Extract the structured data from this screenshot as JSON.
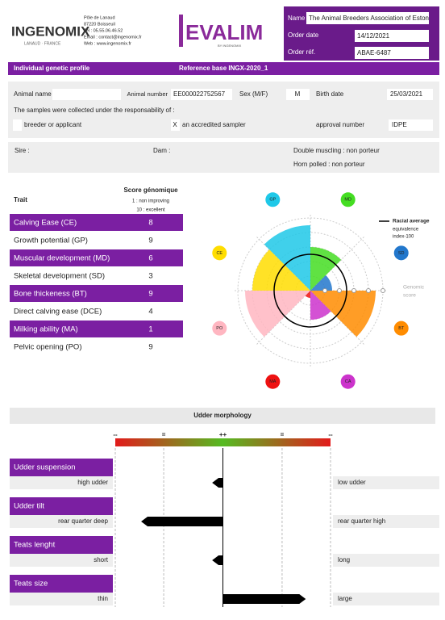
{
  "header": {
    "brand": "INGENOMIX",
    "brand_sub": "LANAUD · FRANCE",
    "address": [
      "Pôle de Lanaud",
      "87220 Boisseuil",
      "Tel : 05.55.06.46.52",
      "Email : contact@ingenomix.fr",
      "Web : www.ingenomix.fr"
    ],
    "product": "EVALIM",
    "product_sub": "BY INGENOMIX",
    "name_label": "Name",
    "name": "The Animal Breeders Association of Estonia",
    "order_date_label": "Order date",
    "order_date": "14/12/2021",
    "order_ref_label": "Order réf.",
    "order_ref": "ABAE-6487"
  },
  "profile": {
    "title": "Individual genetic profile",
    "reference": "Reference base INGX-2020_1"
  },
  "animal": {
    "name_label": "Animal name",
    "number_label": "Animal number",
    "number": "EE000022752567",
    "sex_label": "Sex (M/F)",
    "sex": "M",
    "birth_label": "Birth date",
    "birth": "25/03/2021",
    "samples_text": "The samples were collected under the responsability of :",
    "breeder_label": "breeder or applicant",
    "sampler_mark": "X",
    "sampler_label": "an accredited sampler",
    "approval_label": "approval number",
    "approval": "IDPE",
    "sire_label": "Sire :",
    "dam_label": "Dam :",
    "double_muscling": "Double muscling : non porteur",
    "horn_polled": "Horn polled : non porteur"
  },
  "traits": {
    "heading": "Trait",
    "score_heading": "Score génomique",
    "score_notes": [
      "1 : non improving",
      "10 : excellent"
    ],
    "rows": [
      {
        "name": "Calving Ease (CE)",
        "abbr": "CE",
        "score": 8,
        "color": "#ffdd00"
      },
      {
        "name": "Growth potential (GP)",
        "abbr": "GP",
        "score": 9,
        "color": "#1ec8e8"
      },
      {
        "name": "Muscular development (MD)",
        "abbr": "MD",
        "score": 6,
        "color": "#44dd22"
      },
      {
        "name": "Skeletal development (SD)",
        "abbr": "SD",
        "score": 3,
        "color": "#2277cc"
      },
      {
        "name": "Bone thickeness (BT)",
        "abbr": "BT",
        "score": 9,
        "color": "#ff8c00"
      },
      {
        "name": "Direct calving ease (DCE)",
        "abbr": "CA",
        "score": 4,
        "color": "#cc33cc"
      },
      {
        "name": "Milking ability (MA)",
        "abbr": "MA",
        "score": 1,
        "color": "#ee1111"
      },
      {
        "name": "Pelvic opening (PO)",
        "abbr": "PO",
        "score": 9,
        "color": "#ffb6c1"
      }
    ]
  },
  "polar": {
    "legend": "Racial average",
    "legend_note": [
      "equivalence",
      "index-100"
    ],
    "axis_label": [
      "Genomic",
      "score"
    ],
    "rlim": [
      0,
      10
    ],
    "rticks": [
      2,
      4,
      6,
      8,
      10
    ],
    "reference": 5
  },
  "udder": {
    "title": "Udder morphology",
    "xlim": [
      -1,
      1
    ],
    "xticks": [
      {
        "value": -1,
        "label": "--"
      },
      {
        "value": -0.55,
        "label": "="
      },
      {
        "value": 0,
        "label": "++"
      },
      {
        "value": 0.55,
        "label": "="
      },
      {
        "value": 1,
        "label": "--"
      }
    ],
    "rows": [
      {
        "name": "Udder suspension",
        "left": "high udder",
        "right": "low udder",
        "value": -0.1
      },
      {
        "name": "Udder tilt",
        "left": "rear quarter deep",
        "right": "rear quarter high",
        "value": -0.76
      },
      {
        "name": "Teats lenght",
        "left": "short",
        "right": "long",
        "value": -0.1
      },
      {
        "name": "Teats size",
        "left": "thin",
        "right": "large",
        "value": 0.77
      }
    ]
  }
}
